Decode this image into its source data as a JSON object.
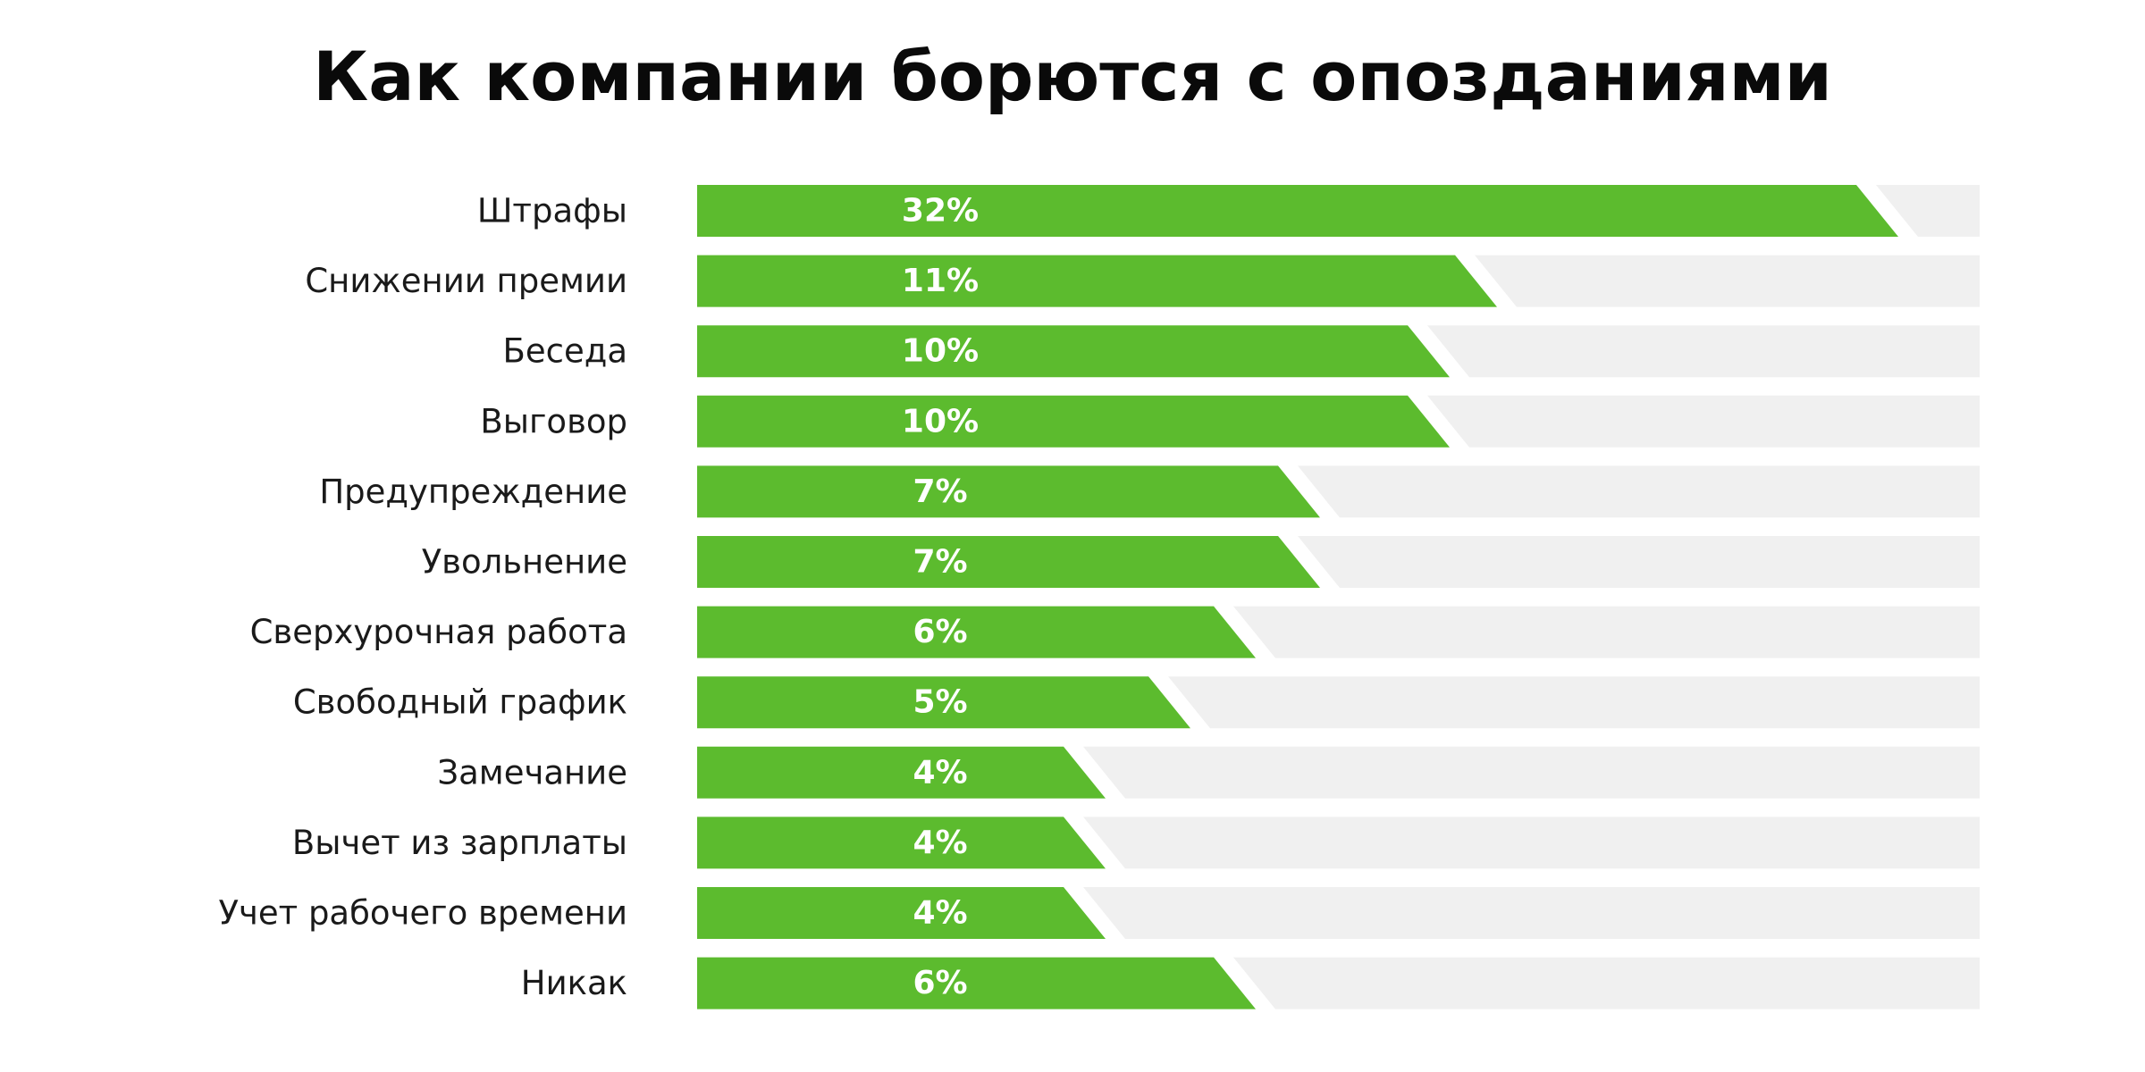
{
  "chart_data": {
    "type": "bar",
    "orientation": "horizontal",
    "title": "Как компании борются с опозданиями",
    "categories": [
      "Штрафы",
      "Снижении премии",
      "Беседа",
      "Выговор",
      "Предупреждение",
      "Увольнение",
      "Сверхурочная работа",
      "Свободный график",
      "Замечание",
      "Вычет из зарплаты",
      "Учет рабочего времени",
      "Никак"
    ],
    "values": [
      32,
      11,
      10,
      10,
      7,
      7,
      6,
      5,
      4,
      4,
      4,
      6
    ],
    "value_labels": [
      "32%",
      "11%",
      "10%",
      "10%",
      "7%",
      "7%",
      "6%",
      "5%",
      "4%",
      "4%",
      "4%",
      "6%"
    ],
    "grid": false,
    "legend": "none",
    "colors": {
      "bar": "#5cbb2e",
      "track": "#f0f0f0",
      "label_text": "#1a1a1a",
      "value_text": "#ffffff"
    }
  }
}
